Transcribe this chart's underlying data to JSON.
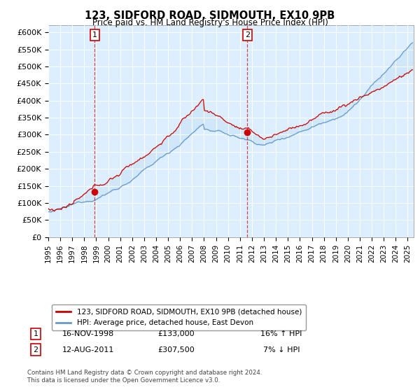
{
  "title": "123, SIDFORD ROAD, SIDMOUTH, EX10 9PB",
  "subtitle": "Price paid vs. HM Land Registry's House Price Index (HPI)",
  "legend_label_red": "123, SIDFORD ROAD, SIDMOUTH, EX10 9PB (detached house)",
  "legend_label_blue": "HPI: Average price, detached house, East Devon",
  "table_rows": [
    {
      "num": "1",
      "date": "16-NOV-1998",
      "price": "£133,000",
      "hpi": "16% ↑ HPI"
    },
    {
      "num": "2",
      "date": "12-AUG-2011",
      "price": "£307,500",
      "hpi": "7% ↓ HPI"
    }
  ],
  "footnote": "Contains HM Land Registry data © Crown copyright and database right 2024.\nThis data is licensed under the Open Government Licence v3.0.",
  "sale1_x": 1998.88,
  "sale1_y": 133000,
  "sale2_x": 2011.62,
  "sale2_y": 307500,
  "vline1_x": 1998.88,
  "vline2_x": 2011.62,
  "ylim": [
    0,
    620000
  ],
  "xlim_start": 1995.0,
  "xlim_end": 2025.5,
  "yticks": [
    0,
    50000,
    100000,
    150000,
    200000,
    250000,
    300000,
    350000,
    400000,
    450000,
    500000,
    550000,
    600000
  ],
  "ytick_labels": [
    "£0",
    "£50K",
    "£100K",
    "£150K",
    "£200K",
    "£250K",
    "£300K",
    "£350K",
    "£400K",
    "£450K",
    "£500K",
    "£550K",
    "£600K"
  ],
  "xtick_labels": [
    "1995",
    "1996",
    "1997",
    "1998",
    "1999",
    "2000",
    "2001",
    "2002",
    "2003",
    "2004",
    "2005",
    "2006",
    "2007",
    "2008",
    "2009",
    "2010",
    "2011",
    "2012",
    "2013",
    "2014",
    "2015",
    "2016",
    "2017",
    "2018",
    "2019",
    "2020",
    "2021",
    "2022",
    "2023",
    "2024",
    "2025"
  ],
  "red_color": "#cc0000",
  "blue_color": "#6699cc",
  "fill_color": "#ddeeff",
  "vline_color": "#cc0000",
  "bg_color": "#ffffff",
  "grid_color": "#cccccc"
}
